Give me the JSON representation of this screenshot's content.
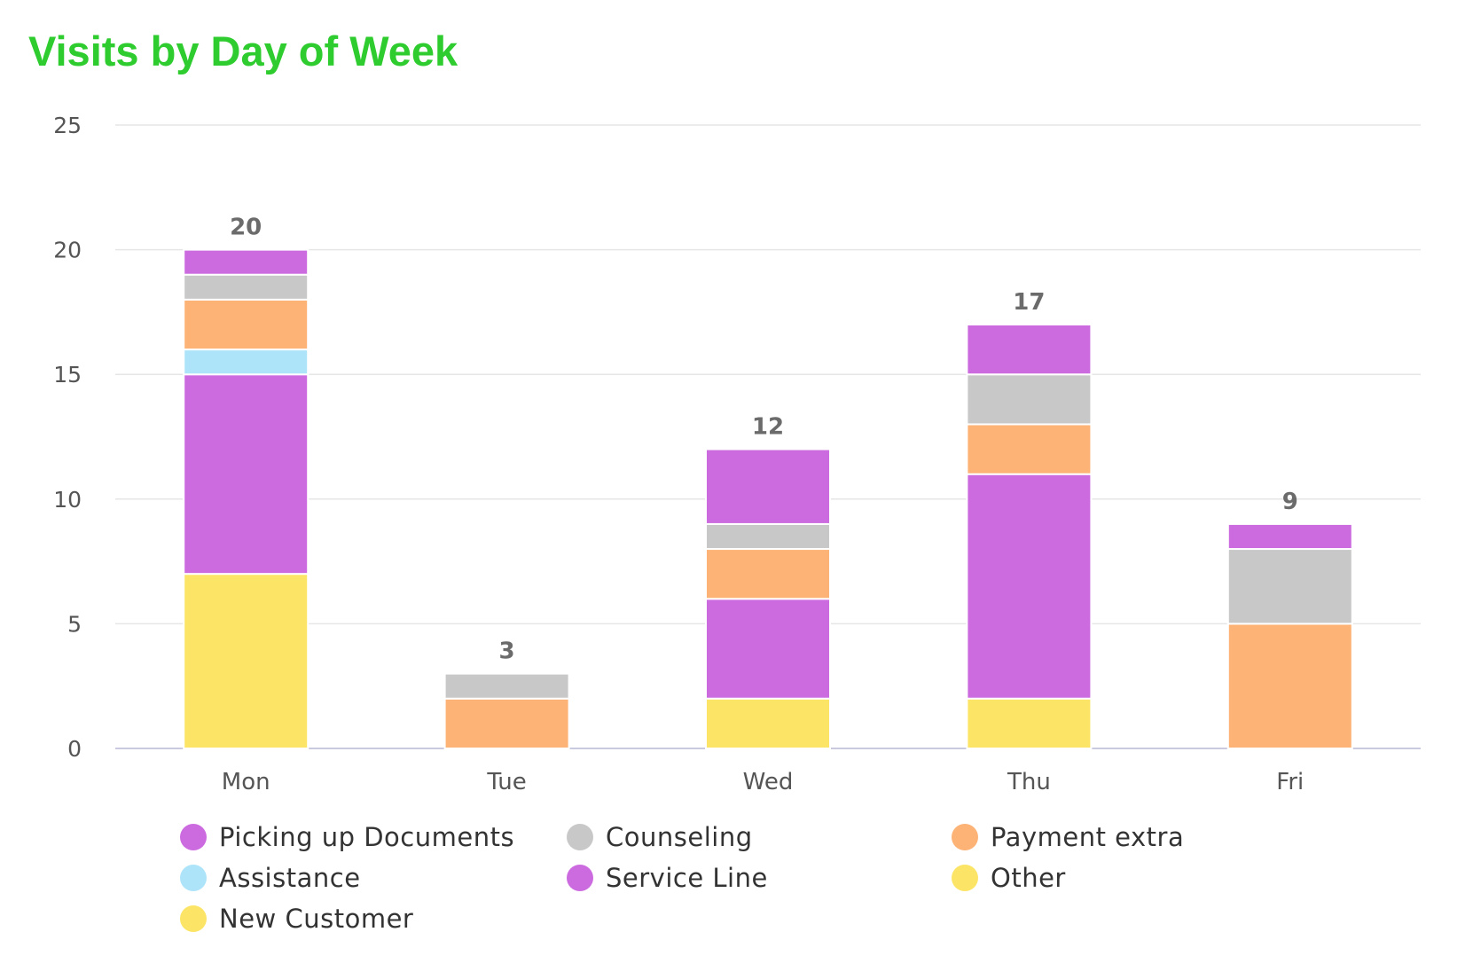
{
  "chart_data": {
    "type": "bar",
    "stacked": true,
    "title": "Visits by Day of Week",
    "title_color": "#2ecc2e",
    "xlabel": "",
    "ylabel": "",
    "ylim": [
      0,
      25
    ],
    "yticks": [
      0,
      5,
      10,
      15,
      20,
      25
    ],
    "grid": true,
    "legend_position": "bottom",
    "categories": [
      "Mon",
      "Tue",
      "Wed",
      "Thu",
      "Fri"
    ],
    "totals": [
      20,
      3,
      12,
      17,
      9
    ],
    "series": [
      {
        "name": "New Customer",
        "color": "#fce566",
        "values": [
          7,
          0,
          2,
          2,
          0
        ]
      },
      {
        "name": "Other",
        "color": "#fce566",
        "values": [
          0,
          0,
          0,
          0,
          0
        ]
      },
      {
        "name": "Service Line",
        "color": "#cc6be0",
        "values": [
          8,
          0,
          4,
          9,
          0
        ]
      },
      {
        "name": "Assistance",
        "color": "#aee4fa",
        "values": [
          1,
          0,
          0,
          0,
          0
        ]
      },
      {
        "name": "Payment extra",
        "color": "#fdb276",
        "values": [
          2,
          2,
          2,
          2,
          5
        ]
      },
      {
        "name": "Counseling",
        "color": "#c8c8c8",
        "values": [
          1,
          1,
          1,
          2,
          3
        ]
      },
      {
        "name": "Picking up Documents",
        "color": "#cc6be0",
        "values": [
          1,
          0,
          3,
          2,
          1
        ]
      }
    ],
    "legend_order": [
      "Picking up Documents",
      "Counseling",
      "Payment extra",
      "Assistance",
      "Service Line",
      "Other",
      "New Customer"
    ]
  }
}
